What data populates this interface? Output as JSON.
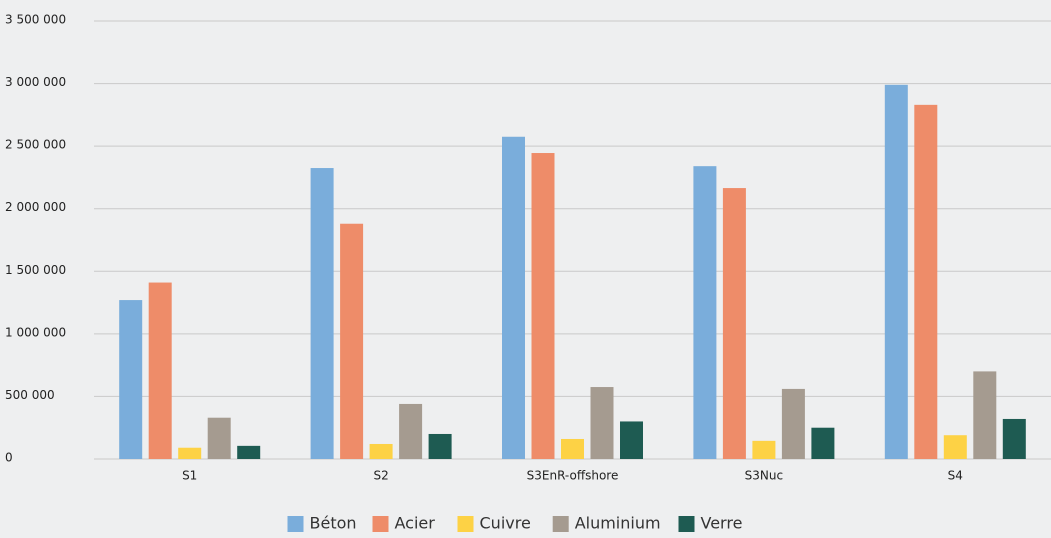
{
  "chart_data": {
    "type": "bar",
    "categories": [
      "S1",
      "S2",
      "S3EnR-offshore",
      "S3Nuc",
      "S4"
    ],
    "series": [
      {
        "name": "Béton",
        "color": "#7aaddb",
        "values": [
          1270000,
          2325000,
          2575000,
          2340000,
          2990000
        ]
      },
      {
        "name": "Acier",
        "color": "#ee8c69",
        "values": [
          1410000,
          1880000,
          2445000,
          2165000,
          2830000
        ]
      },
      {
        "name": "Cuivre",
        "color": "#fdd245",
        "values": [
          90000,
          120000,
          160000,
          145000,
          190000
        ]
      },
      {
        "name": "Aluminium",
        "color": "#a59b90",
        "values": [
          330000,
          440000,
          575000,
          560000,
          700000
        ]
      },
      {
        "name": "Verre",
        "color": "#1e5b52",
        "values": [
          105000,
          200000,
          300000,
          250000,
          320000
        ]
      }
    ],
    "ylim": [
      0,
      3500000
    ],
    "yticks": [
      0,
      {
        "value": 500000,
        "label": "500 000"
      },
      {
        "value": 1000000,
        "label": "1 000 000"
      },
      {
        "value": 1500000,
        "label": "1 500 000"
      },
      {
        "value": 2000000,
        "label": "2 000 000"
      },
      {
        "value": 2500000,
        "label": "2 500 000"
      },
      {
        "value": 3000000,
        "label": "3 000 000"
      },
      {
        "value": 3500000,
        "label": "3 500 000"
      }
    ],
    "grid": true,
    "legend": "bottom"
  }
}
